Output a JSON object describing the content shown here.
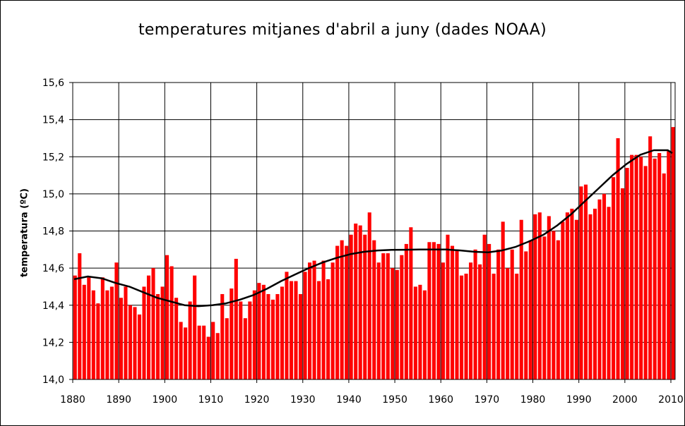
{
  "chart_data": {
    "type": "bar",
    "title": "temperatures mitjanes d'abril a juny (dades NOAA)",
    "xlabel": "",
    "ylabel": "temperatura (ºC)",
    "ylim": [
      14.0,
      15.6
    ],
    "xlim": [
      1880,
      2010
    ],
    "yticks": [
      "14,0",
      "14,2",
      "14,4",
      "14,6",
      "14,8",
      "15,0",
      "15,2",
      "15,4",
      "15,6"
    ],
    "xticks": [
      "1880",
      "1890",
      "1900",
      "1910",
      "1920",
      "1930",
      "1940",
      "1950",
      "1960",
      "1970",
      "1980",
      "1990",
      "2000",
      "2010"
    ],
    "grid": true,
    "bar_color": "#ff0000",
    "line_color": "#000000",
    "series": [
      {
        "name": "",
        "type": "bar",
        "x": [
          1880,
          1881,
          1882,
          1883,
          1884,
          1885,
          1886,
          1887,
          1888,
          1889,
          1890,
          1891,
          1892,
          1893,
          1894,
          1895,
          1896,
          1897,
          1898,
          1899,
          1900,
          1901,
          1902,
          1903,
          1904,
          1905,
          1906,
          1907,
          1908,
          1909,
          1910,
          1911,
          1912,
          1913,
          1914,
          1915,
          1916,
          1917,
          1918,
          1919,
          1920,
          1921,
          1922,
          1923,
          1924,
          1925,
          1926,
          1927,
          1928,
          1929,
          1930,
          1931,
          1932,
          1933,
          1934,
          1935,
          1936,
          1937,
          1938,
          1939,
          1940,
          1941,
          1942,
          1943,
          1944,
          1945,
          1946,
          1947,
          1948,
          1949,
          1950,
          1951,
          1952,
          1953,
          1954,
          1955,
          1956,
          1957,
          1958,
          1959,
          1960,
          1961,
          1962,
          1963,
          1964,
          1965,
          1966,
          1967,
          1968,
          1969,
          1970,
          1971,
          1972,
          1973,
          1974,
          1975,
          1976,
          1977,
          1978,
          1979,
          1980,
          1981,
          1982,
          1983,
          1984,
          1985,
          1986,
          1987,
          1988,
          1989,
          1990,
          1991,
          1992,
          1993,
          1994,
          1995,
          1996,
          1997,
          1998,
          1999,
          2000,
          2001,
          2002,
          2003,
          2004,
          2005,
          2006,
          2007,
          2008,
          2009,
          2010
        ],
        "values": [
          14.56,
          14.68,
          14.51,
          14.55,
          14.48,
          14.41,
          14.55,
          14.48,
          14.5,
          14.63,
          14.44,
          14.5,
          14.4,
          14.39,
          14.35,
          14.5,
          14.56,
          14.6,
          14.46,
          14.5,
          14.67,
          14.61,
          14.44,
          14.31,
          14.28,
          14.42,
          14.56,
          14.29,
          14.29,
          14.23,
          14.31,
          14.25,
          14.46,
          14.33,
          14.49,
          14.65,
          14.42,
          14.33,
          14.42,
          14.48,
          14.52,
          14.51,
          14.46,
          14.43,
          14.46,
          14.5,
          14.58,
          14.53,
          14.53,
          14.46,
          14.58,
          14.63,
          14.64,
          14.53,
          14.64,
          14.54,
          14.63,
          14.72,
          14.75,
          14.72,
          14.78,
          14.84,
          14.83,
          14.78,
          14.9,
          14.75,
          14.63,
          14.68,
          14.68,
          14.6,
          14.59,
          14.67,
          14.73,
          14.82,
          14.5,
          14.51,
          14.48,
          14.74,
          14.74,
          14.73,
          14.63,
          14.78,
          14.72,
          14.7,
          14.56,
          14.57,
          14.63,
          14.7,
          14.62,
          14.78,
          14.73,
          14.57,
          14.7,
          14.85,
          14.6,
          14.7,
          14.57,
          14.86,
          14.69,
          14.75,
          14.89,
          14.9,
          14.77,
          14.88,
          14.8,
          14.75,
          14.85,
          14.9,
          14.92,
          14.86,
          15.04,
          15.05,
          14.89,
          14.92,
          14.97,
          15.0,
          14.93,
          15.09,
          15.3,
          15.03,
          15.14,
          15.21,
          15.21,
          15.2,
          15.15,
          15.31,
          15.19,
          15.22,
          15.11,
          15.23,
          15.36
        ]
      },
      {
        "name": "",
        "type": "line",
        "x": [
          1880,
          1883,
          1886,
          1889,
          1892,
          1895,
          1898,
          1901,
          1904,
          1907,
          1910,
          1913,
          1916,
          1919,
          1922,
          1925,
          1928,
          1931,
          1934,
          1937,
          1940,
          1943,
          1946,
          1949,
          1952,
          1955,
          1958,
          1961,
          1964,
          1967,
          1970,
          1973,
          1976,
          1979,
          1982,
          1985,
          1988,
          1991,
          1994,
          1997,
          2000,
          2003,
          2006,
          2009,
          2010
        ],
        "values": [
          14.54,
          14.555,
          14.545,
          14.52,
          14.5,
          14.47,
          14.44,
          14.42,
          14.4,
          14.395,
          14.4,
          14.41,
          14.43,
          14.455,
          14.49,
          14.53,
          14.565,
          14.6,
          14.63,
          14.655,
          14.675,
          14.688,
          14.695,
          14.698,
          14.699,
          14.7,
          14.7,
          14.7,
          14.695,
          14.688,
          14.685,
          14.695,
          14.715,
          14.745,
          14.78,
          14.83,
          14.89,
          14.96,
          15.03,
          15.1,
          15.16,
          15.21,
          15.235,
          15.235,
          15.22
        ]
      }
    ]
  }
}
